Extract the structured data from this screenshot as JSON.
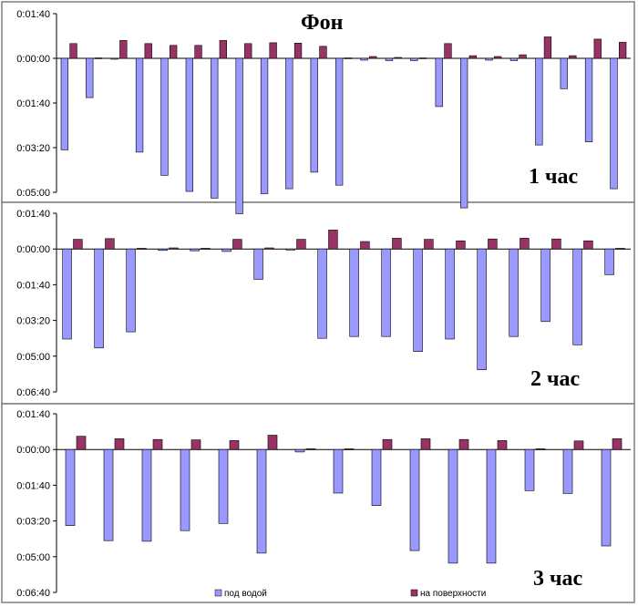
{
  "chart_data": [
    {
      "type": "bar",
      "panel_title": "1 час",
      "main_title": "Фон",
      "y_tick_labels": [
        "0:01:40",
        "0:00:00",
        "0:01:40",
        "0:03:20",
        "0:05:00"
      ],
      "y_tick_values": [
        -100,
        0,
        100,
        200,
        300
      ],
      "ylim": [
        -100,
        300
      ],
      "series": [
        {
          "name": "под водой",
          "color": "#9999FF",
          "values": [
            205,
            88,
            2,
            210,
            262,
            298,
            313,
            348,
            303,
            292,
            255,
            284,
            4,
            5,
            5,
            108,
            335,
            4,
            5,
            194,
            68,
            187,
            292
          ]
        },
        {
          "name": "на поверхности",
          "color": "#993366",
          "values": [
            33,
            1,
            40,
            33,
            29,
            29,
            40,
            33,
            35,
            34,
            27,
            1,
            4,
            2,
            1,
            33,
            6,
            4,
            8,
            48,
            6,
            43,
            36
          ]
        }
      ]
    },
    {
      "type": "bar",
      "panel_title": "2 час",
      "y_tick_labels": [
        "0:01:40",
        "0:00:00",
        "0:01:40",
        "0:03:20",
        "0:05:00",
        "0:06:40"
      ],
      "y_tick_values": [
        -100,
        0,
        100,
        200,
        300,
        400
      ],
      "ylim": [
        -100,
        400
      ],
      "series": [
        {
          "name": "под водой",
          "color": "#9999FF",
          "values": [
            252,
            277,
            232,
            4,
            5,
            7,
            85,
            3,
            250,
            245,
            245,
            287,
            252,
            338,
            245,
            203,
            268,
            72
          ]
        },
        {
          "name": "на поверхности",
          "color": "#993366",
          "values": [
            27,
            29,
            2,
            3,
            2,
            27,
            3,
            27,
            53,
            21,
            30,
            27,
            23,
            28,
            30,
            28,
            23,
            2
          ]
        }
      ]
    },
    {
      "type": "bar",
      "panel_title": "3 час",
      "y_tick_labels": [
        "0:01:40",
        "0:00:00",
        "0:01:40",
        "0:03:20",
        "0:05:00",
        "0:06:40"
      ],
      "y_tick_values": [
        -100,
        0,
        100,
        200,
        300,
        400
      ],
      "ylim": [
        -100,
        400
      ],
      "series": [
        {
          "name": "под водой",
          "color": "#9999FF",
          "values": [
            213,
            255,
            257,
            227,
            207,
            290,
            7,
            122,
            157,
            283,
            318,
            318,
            115,
            123,
            270
          ]
        },
        {
          "name": "на поверхности",
          "color": "#993366",
          "values": [
            37,
            30,
            28,
            27,
            25,
            40,
            2,
            2,
            28,
            30,
            28,
            25,
            2,
            24,
            30
          ]
        }
      ]
    }
  ],
  "legend": {
    "items": [
      {
        "label": "под водой",
        "color": "#9999FF"
      },
      {
        "label": "на поверхности",
        "color": "#993366"
      }
    ]
  }
}
